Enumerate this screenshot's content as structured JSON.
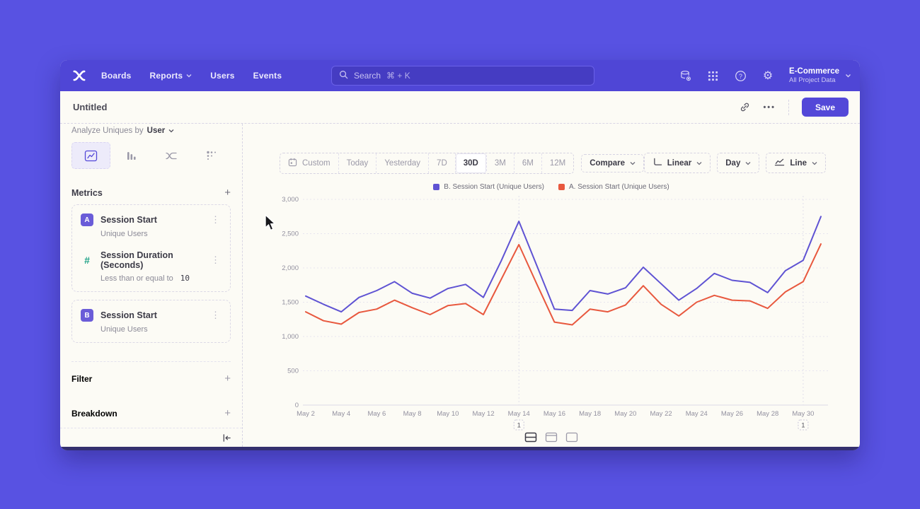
{
  "nav": {
    "items": [
      "Boards",
      "Reports",
      "Users",
      "Events"
    ],
    "search": {
      "label": "Search",
      "shortcut": "⌘ + K"
    },
    "icons": [
      "data-integrations-icon",
      "apps-grid-icon",
      "help-icon",
      "settings-icon"
    ],
    "project": {
      "name": "E-Commerce",
      "scope": "All Project Data"
    }
  },
  "toolbar": {
    "title": "Untitled",
    "save_label": "Save"
  },
  "sidebar": {
    "analyze_label": "Analyze Uniques by",
    "analyze_value": "User",
    "tabs": [
      "insights-line",
      "bar",
      "flow",
      "retention"
    ],
    "metrics_header": "Metrics",
    "groups": [
      {
        "items": [
          {
            "badge": "A",
            "title": "Session Start",
            "subtitle": "Unique Users",
            "subtitle_value": ""
          },
          {
            "badge": "#",
            "title": "Session Duration (Seconds)",
            "subtitle": "Less than or equal to",
            "subtitle_value": "10"
          }
        ]
      },
      {
        "items": [
          {
            "badge": "B",
            "title": "Session Start",
            "subtitle": "Unique Users",
            "subtitle_value": ""
          }
        ]
      }
    ],
    "filter_label": "Filter",
    "breakdown_label": "Breakdown"
  },
  "controls": {
    "custom_label": "Custom",
    "ranges": [
      "Today",
      "Yesterday",
      "7D",
      "30D",
      "3M",
      "6M",
      "12M"
    ],
    "selected_range": "30D",
    "compare_label": "Compare",
    "scale_label": "Linear",
    "interval_label": "Day",
    "chart_type_label": "Line"
  },
  "chart_data": {
    "type": "line",
    "title": "",
    "xlabel": "",
    "ylabel": "",
    "categories": [
      "May 2",
      "May 3",
      "May 4",
      "May 5",
      "May 6",
      "May 7",
      "May 8",
      "May 9",
      "May 10",
      "May 11",
      "May 12",
      "May 13",
      "May 14",
      "May 15",
      "May 16",
      "May 17",
      "May 18",
      "May 19",
      "May 20",
      "May 21",
      "May 22",
      "May 23",
      "May 24",
      "May 25",
      "May 26",
      "May 27",
      "May 28",
      "May 29",
      "May 30",
      "May 31"
    ],
    "series": [
      {
        "name": "B. Session Start (Unique Users)",
        "color": "#5f53d3",
        "values": [
          1590,
          1470,
          1360,
          1570,
          1670,
          1800,
          1630,
          1560,
          1700,
          1760,
          1570,
          2100,
          2680,
          2040,
          1400,
          1380,
          1670,
          1620,
          1710,
          2010,
          1770,
          1530,
          1700,
          1920,
          1820,
          1790,
          1640,
          1960,
          2110,
          2750
        ]
      },
      {
        "name": "A. Session Start (Unique Users)",
        "color": "#e8583e",
        "values": [
          1360,
          1230,
          1180,
          1350,
          1400,
          1530,
          1420,
          1320,
          1450,
          1480,
          1320,
          1830,
          2340,
          1770,
          1210,
          1170,
          1400,
          1360,
          1460,
          1740,
          1470,
          1300,
          1500,
          1600,
          1530,
          1520,
          1410,
          1650,
          1800,
          2350
        ]
      }
    ],
    "ylim": [
      0,
      3000
    ],
    "yticks": [
      0,
      500,
      1000,
      1500,
      2000,
      2500,
      3000
    ],
    "ytick_labels": [
      "0",
      "500",
      "1,000",
      "1,500",
      "2,000",
      "2,500",
      "3,000"
    ],
    "xtick_every": 2,
    "grid": "horizontal-dashed",
    "legend_position": "top-center",
    "annotations": [
      {
        "index": 12,
        "label": "1"
      },
      {
        "index": 28,
        "label": "1"
      }
    ]
  },
  "footer": {
    "layout_options": [
      "split-view",
      "chart-with-header",
      "chart-only"
    ],
    "selected": "split-view"
  }
}
